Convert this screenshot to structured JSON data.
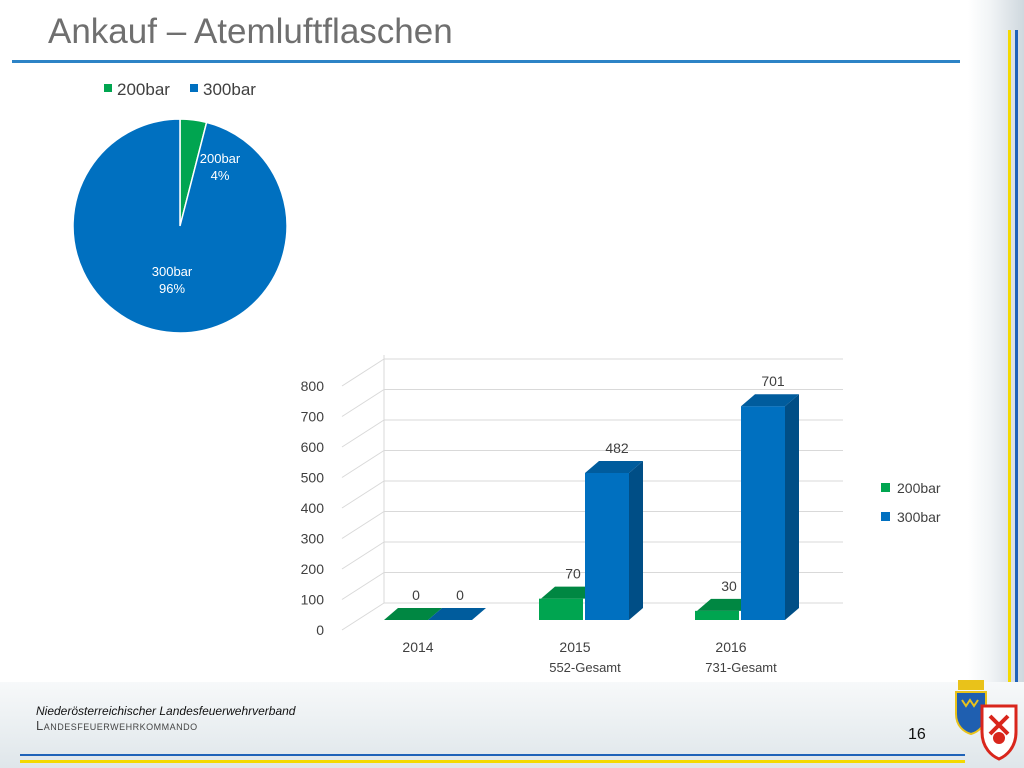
{
  "slide": {
    "title": "Ankauf – Atemluftflaschen",
    "page_number": "16",
    "org_line1": "Niederösterreichischer Landesfeuerwehrverband",
    "org_line2": "Landesfeuerwehrkommando"
  },
  "chart_data": [
    {
      "type": "pie",
      "legend_position": "top",
      "categories": [
        "200bar",
        "300bar"
      ],
      "values": [
        4,
        96
      ],
      "data_labels": [
        {
          "category": "200bar",
          "percent": "4%"
        },
        {
          "category": "300bar",
          "percent": "96%"
        }
      ],
      "colors": [
        "#00a550",
        "#0070c0"
      ]
    },
    {
      "type": "bar",
      "style": "3d-clustered-column",
      "legend_position": "right",
      "categories": [
        "2014",
        "2015",
        "2016"
      ],
      "category_sublabels": [
        "",
        "552-Gesamt",
        "731-Gesamt"
      ],
      "series": [
        {
          "name": "200bar",
          "values": [
            0,
            70,
            30
          ],
          "color": "#00a550"
        },
        {
          "name": "300bar",
          "values": [
            0,
            482,
            701
          ],
          "color": "#0070c0"
        }
      ],
      "ylim": [
        0,
        800
      ],
      "yticks": [
        "0",
        "100",
        "200",
        "300",
        "400",
        "500",
        "600",
        "700",
        "800"
      ],
      "grid": true
    }
  ]
}
